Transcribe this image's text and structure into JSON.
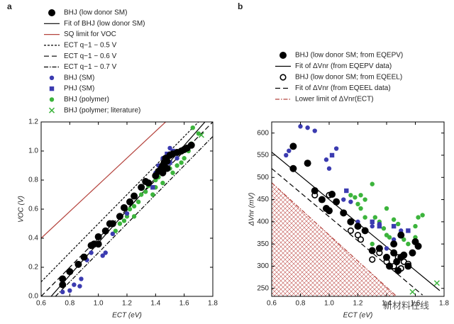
{
  "chart_data": [
    {
      "type": "scatter",
      "label": "a",
      "xlabel": "ECT (eV)",
      "ylabel": "VOC (V)",
      "xlim": [
        0.6,
        1.8
      ],
      "ylim": [
        0,
        1.2
      ],
      "xticks": [
        0.6,
        0.8,
        {
          "value": 1,
          "label": "1.0"
        },
        1.2,
        1.4,
        1.6,
        1.8
      ],
      "yticks": [
        {
          "value": 0,
          "label": "0.0"
        },
        0.2,
        0.4,
        0.6,
        0.8,
        {
          "value": 1,
          "label": "1.0"
        },
        1.2
      ],
      "series": [
        {
          "name": "BHJ (low donor SM)",
          "color": "#000000",
          "marker": "circle",
          "size": 5,
          "x": [
            0.75,
            0.75,
            0.8,
            0.86,
            0.9,
            0.95,
            0.97,
            1.0,
            1.0,
            1.05,
            1.08,
            1.1,
            1.15,
            1.18,
            1.22,
            1.25,
            1.3,
            1.33,
            1.35,
            1.4,
            1.42,
            1.44,
            1.45,
            1.46,
            1.47,
            1.48,
            1.5,
            1.52,
            1.55,
            1.58,
            1.6,
            1.62,
            1.65,
            1.45,
            1.48
          ],
          "values": [
            0.08,
            0.12,
            0.17,
            0.22,
            0.27,
            0.35,
            0.36,
            0.36,
            0.41,
            0.45,
            0.5,
            0.5,
            0.55,
            0.61,
            0.65,
            0.69,
            0.75,
            0.79,
            0.78,
            0.83,
            0.86,
            0.88,
            0.9,
            0.92,
            0.95,
            0.93,
            0.97,
            0.98,
            0.99,
            1.0,
            1.01,
            1.02,
            1.04,
            0.85,
            0.88
          ]
        },
        {
          "name": "Fit of BHJ (low donor SM)",
          "color": "#000000",
          "line": "solid",
          "x": [
            0.67,
            1.745
          ],
          "values": [
            0,
            1.2
          ]
        },
        {
          "name": "SQ limit for VOC",
          "color": "#b5443e",
          "line": "solid",
          "x": [
            0.6,
            1.47
          ],
          "values": [
            0.4,
            1.2
          ]
        },
        {
          "name": "ECT q−1 − 0.5 V",
          "color": "#000000",
          "line": "short",
          "x": [
            0.6,
            1.7
          ],
          "values": [
            0.1,
            1.2
          ]
        },
        {
          "name": "ECT q−1 − 0.6 V",
          "color": "#000000",
          "line": "long",
          "x": [
            0.6,
            1.8
          ],
          "values": [
            0,
            1.2
          ]
        },
        {
          "name": "ECT q−1 − 0.7 V",
          "color": "#000000",
          "line": "dashdot",
          "x": [
            0.7,
            1.8
          ],
          "values": [
            0,
            1.1
          ]
        },
        {
          "name": "BHJ (SM)",
          "color": "#3b3bb0",
          "marker": "circle",
          "size": 3.2,
          "x": [
            0.75,
            0.8,
            0.83,
            0.87,
            0.88,
            0.92,
            0.95,
            1.03,
            1.05,
            1.1,
            1.2,
            1.35,
            1.4,
            1.45,
            1.5,
            1.42,
            1.55,
            1.47
          ],
          "values": [
            0.03,
            0.04,
            0.08,
            0.07,
            0.12,
            0.25,
            0.3,
            0.28,
            0.3,
            0.43,
            0.57,
            0.78,
            0.85,
            0.95,
            1.02,
            0.9,
            0.95,
            0.88
          ]
        },
        {
          "name": "PHJ (SM)",
          "color": "#3b3bb0",
          "marker": "square",
          "size": 3.2,
          "x": [
            1.38,
            1.45,
            1.5,
            1.52,
            1.48
          ],
          "values": [
            0.75,
            0.87,
            0.92,
            1.0,
            0.98
          ]
        },
        {
          "name": "BHJ (polymer)",
          "color": "#3cb43c",
          "marker": "circle",
          "size": 3.2,
          "x": [
            1.12,
            1.15,
            1.18,
            1.2,
            1.22,
            1.25,
            1.28,
            1.3,
            1.33,
            1.35,
            1.38,
            1.4,
            1.42,
            1.45,
            1.5,
            1.52,
            1.55,
            1.58,
            1.6,
            1.63,
            1.65,
            1.66,
            1.7,
            1.25,
            1.4
          ],
          "values": [
            0.45,
            0.5,
            0.52,
            0.55,
            0.6,
            0.62,
            0.65,
            0.7,
            0.72,
            0.76,
            0.7,
            0.8,
            0.82,
            0.78,
            0.88,
            0.85,
            0.9,
            0.92,
            0.95,
            1.0,
            1.05,
            1.16,
            1.12,
            0.55,
            0.75
          ]
        },
        {
          "name": "BHJ (polymer; literature)",
          "color": "#3cb43c",
          "marker": "x",
          "size": 3.5,
          "x": [
            1.72
          ],
          "values": [
            1.11
          ]
        }
      ]
    },
    {
      "type": "scatter",
      "label": "b",
      "xlabel": "ECT (eV)",
      "ylabel": "ΔVnr (mV)",
      "xlim": [
        0.6,
        1.8
      ],
      "ylim": [
        232,
        625
      ],
      "xticks": [
        0.6,
        0.8,
        {
          "value": 1,
          "label": "1.0"
        },
        1.2,
        1.4,
        1.6,
        1.8
      ],
      "yticks": [
        250,
        300,
        350,
        400,
        450,
        500,
        550,
        600
      ],
      "series": [
        {
          "name": "BHJ (low donor SM; from EQEPV)",
          "color": "#000000",
          "marker": "circle",
          "size": 5,
          "x": [
            0.75,
            0.75,
            0.85,
            0.9,
            0.95,
            0.98,
            1.0,
            1.02,
            1.05,
            1.1,
            1.15,
            1.2,
            1.25,
            1.3,
            1.35,
            1.4,
            1.42,
            1.45,
            1.47,
            1.5,
            1.52,
            1.55,
            1.58,
            1.6,
            1.62,
            1.45,
            1.5,
            1.48
          ],
          "values": [
            570,
            520,
            532,
            470,
            450,
            430,
            425,
            462,
            445,
            420,
            400,
            390,
            380,
            335,
            340,
            320,
            300,
            330,
            310,
            370,
            325,
            300,
            330,
            355,
            345,
            350,
            320,
            290
          ]
        },
        {
          "name": "Fit of ΔVnr (from EQEPV data)",
          "color": "#000000",
          "line": "solid",
          "x": [
            0.6,
            1.77
          ],
          "values": [
            557,
            245
          ]
        },
        {
          "name": "BHJ (low donor SM; from EQEEL)",
          "color": "#000000",
          "marker": "open-circle",
          "size": 4.5,
          "x": [
            0.9,
            1.0,
            1.15,
            1.2,
            1.22,
            1.3,
            1.35,
            1.4,
            1.45,
            1.5,
            1.52,
            1.55,
            1.48
          ],
          "values": [
            460,
            460,
            380,
            370,
            360,
            315,
            330,
            310,
            300,
            295,
            310,
            305,
            320
          ]
        },
        {
          "name": "Fit of ΔVnr (from EQEEL data)",
          "color": "#000000",
          "line": "long",
          "x": [
            0.6,
            1.65
          ],
          "values": [
            520,
            235
          ]
        },
        {
          "name": "Lower limit of ΔVnr(ECT)",
          "color": "#b5443e",
          "line": "dashdot",
          "hatch": true,
          "x": [
            0.6,
            1.47
          ],
          "values": [
            488,
            232
          ]
        },
        {
          "color": "#3b3bb0",
          "marker": "circle",
          "size": 3.2,
          "x": [
            0.7,
            0.72,
            0.8,
            0.85,
            0.9,
            0.98,
            1.0,
            1.05,
            1.1,
            1.15,
            1.2,
            1.3,
            1.35,
            1.45,
            1.5,
            1.4
          ],
          "values": [
            550,
            560,
            615,
            612,
            605,
            540,
            520,
            565,
            450,
            445,
            400,
            390,
            395,
            360,
            380,
            340
          ]
        },
        {
          "color": "#3b3bb0",
          "marker": "square",
          "size": 3.2,
          "x": [
            1.02,
            1.12,
            1.35,
            1.45,
            1.55,
            1.3
          ],
          "values": [
            550,
            470,
            390,
            390,
            380,
            400
          ]
        },
        {
          "color": "#3cb43c",
          "marker": "circle",
          "size": 3.2,
          "x": [
            1.15,
            1.18,
            1.2,
            1.22,
            1.25,
            1.22,
            1.3,
            1.32,
            1.35,
            1.38,
            1.4,
            1.42,
            1.45,
            1.48,
            1.5,
            1.52,
            1.55,
            1.6,
            1.62,
            1.65,
            1.6,
            1.25,
            1.4,
            1.3
          ],
          "values": [
            460,
            455,
            440,
            460,
            450,
            430,
            485,
            410,
            400,
            385,
            370,
            365,
            405,
            395,
            375,
            360,
            350,
            365,
            410,
            415,
            390,
            410,
            430,
            350
          ]
        },
        {
          "color": "#3cb43c",
          "marker": "x",
          "size": 3.5,
          "x": [
            1.58,
            1.75
          ],
          "values": [
            242,
            262
          ]
        }
      ]
    }
  ],
  "watermark": "新材料在线"
}
